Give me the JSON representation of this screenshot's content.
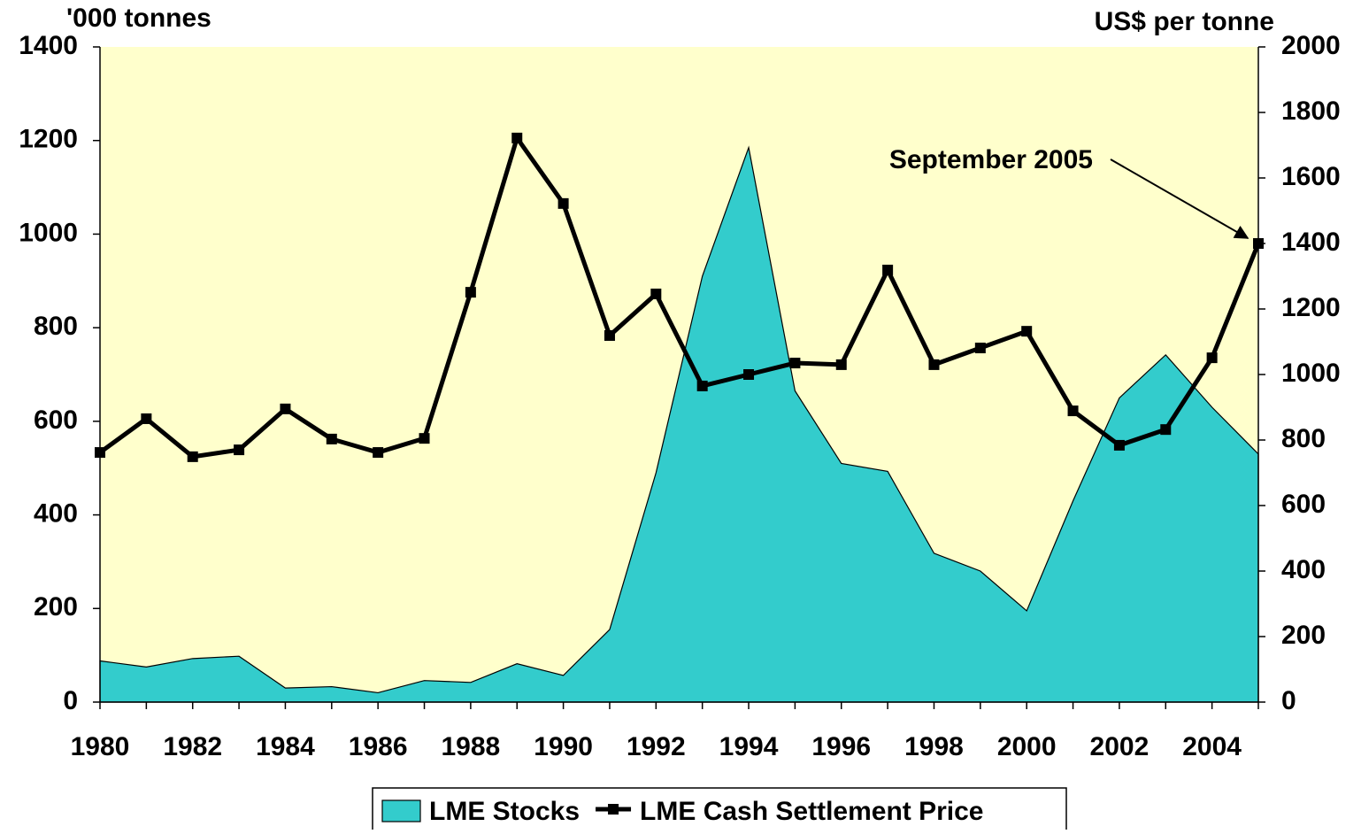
{
  "chart_data": {
    "type": "area-line",
    "axis_title_left": "'000 tonnes",
    "axis_title_right": "US$ per tonne",
    "annotation": "September 2005",
    "x": [
      1980,
      1981,
      1982,
      1983,
      1984,
      1985,
      1986,
      1987,
      1988,
      1989,
      1990,
      1991,
      1992,
      1993,
      1994,
      1995,
      1996,
      1997,
      1998,
      1999,
      2000,
      2001,
      2002,
      2003,
      2004,
      2005
    ],
    "xlim": [
      1980,
      2005
    ],
    "xticks": [
      1980,
      1982,
      1984,
      1986,
      1988,
      1990,
      1992,
      1994,
      1996,
      1998,
      2000,
      2002,
      2004
    ],
    "ylim": [
      0,
      1400
    ],
    "yticks": [
      0,
      200,
      400,
      600,
      800,
      1000,
      1200,
      1400
    ],
    "y2lim": [
      0,
      2000
    ],
    "y2ticks": [
      0,
      200,
      400,
      600,
      800,
      1000,
      1200,
      1400,
      1600,
      1800,
      2000
    ],
    "background": "#ffffcc",
    "series": [
      {
        "name": "LME Stocks",
        "type": "area",
        "color": "#33cccc",
        "values": [
          88,
          75,
          93,
          98,
          30,
          33,
          20,
          46,
          42,
          82,
          57,
          155,
          490,
          910,
          1185,
          665,
          510,
          493,
          318,
          280,
          195,
          430,
          650,
          742,
          630,
          530
        ]
      },
      {
        "name": "LME Cash Settlement Price",
        "type": "line",
        "axis": "y2",
        "color": "#000000",
        "values": [
          762,
          865,
          749,
          770,
          895,
          803,
          762,
          805,
          1251,
          1722,
          1522,
          1119,
          1246,
          965,
          1000,
          1035,
          1030,
          1319,
          1030,
          1081,
          1132,
          889,
          784,
          832,
          1051,
          1400
        ]
      }
    ]
  }
}
